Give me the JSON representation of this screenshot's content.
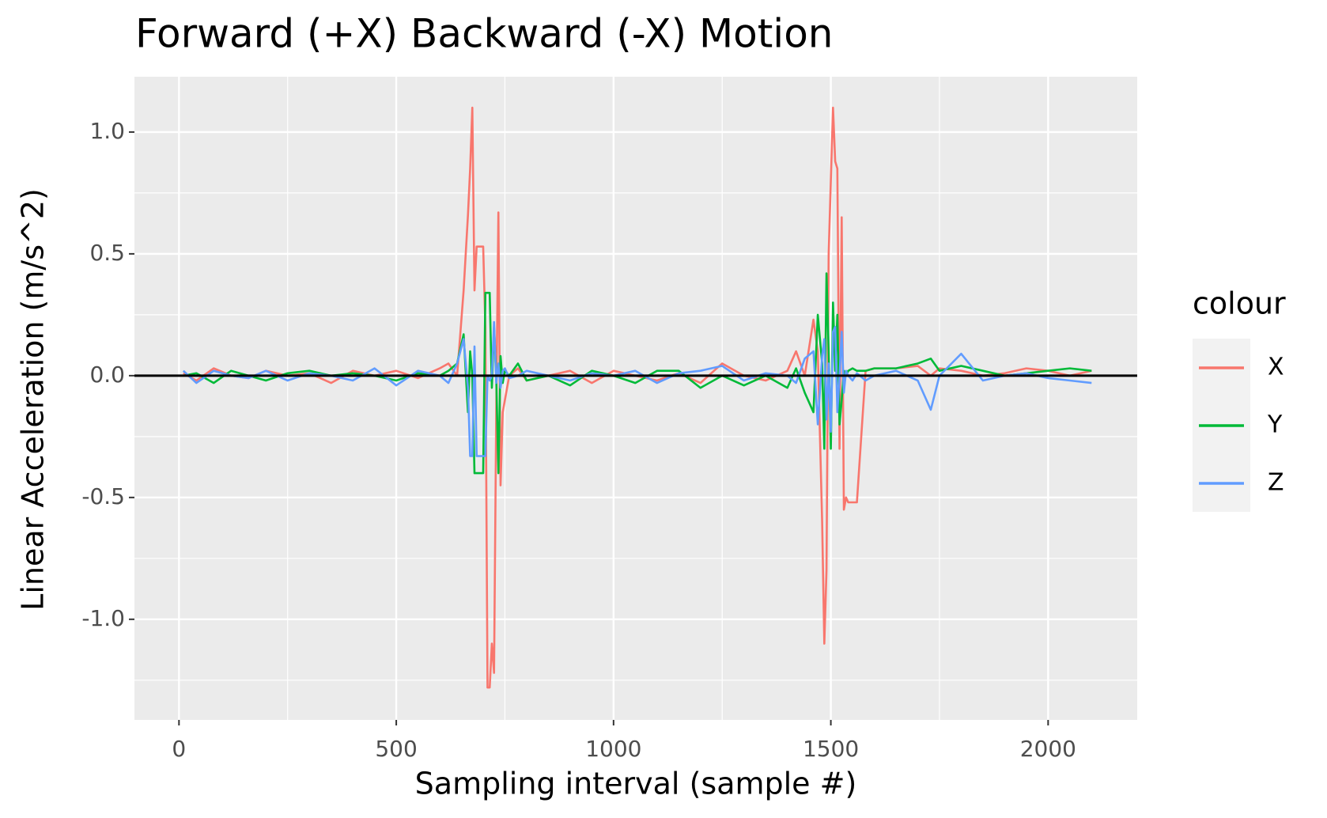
{
  "chart_data": {
    "type": "line",
    "title": "Forward (+X) Backward (-X) Motion",
    "x_label": "Sampling interval (sample #)",
    "y_label": "Linear Acceleration (m/s^2)",
    "legend_title": "colour",
    "legend_position": "right",
    "grid": true,
    "hline": 0,
    "x": [
      10,
      40,
      80,
      120,
      160,
      200,
      250,
      300,
      350,
      400,
      450,
      500,
      550,
      600,
      620,
      640,
      655,
      665,
      670,
      675,
      680,
      685,
      690,
      700,
      705,
      710,
      715,
      720,
      725,
      730,
      735,
      740,
      745,
      750,
      760,
      780,
      800,
      850,
      900,
      950,
      1000,
      1050,
      1100,
      1150,
      1200,
      1250,
      1300,
      1350,
      1400,
      1420,
      1440,
      1460,
      1470,
      1480,
      1485,
      1490,
      1495,
      1500,
      1505,
      1510,
      1515,
      1520,
      1525,
      1530,
      1535,
      1540,
      1550,
      1560,
      1580,
      1600,
      1650,
      1700,
      1730,
      1750,
      1800,
      1850,
      1900,
      1950,
      2000,
      2050,
      2100
    ],
    "series": [
      {
        "name": "X",
        "color": "#f8766d",
        "values": [
          0.01,
          -0.02,
          0.03,
          0.0,
          -0.01,
          0.02,
          0.0,
          0.01,
          -0.03,
          0.02,
          0.0,
          0.02,
          -0.01,
          0.03,
          0.05,
          0.0,
          0.35,
          0.66,
          0.85,
          1.1,
          0.35,
          0.53,
          0.53,
          0.53,
          0.2,
          -1.28,
          -1.28,
          -1.1,
          -1.22,
          -0.15,
          0.67,
          -0.45,
          -0.15,
          -0.1,
          0.0,
          0.03,
          -0.02,
          0.0,
          0.02,
          -0.03,
          0.02,
          0.0,
          -0.02,
          0.01,
          -0.03,
          0.05,
          0.0,
          -0.02,
          0.02,
          0.1,
          0.0,
          0.23,
          0.1,
          -0.6,
          -1.1,
          -0.8,
          0.5,
          0.8,
          1.1,
          0.88,
          0.85,
          -0.3,
          0.65,
          -0.55,
          -0.5,
          -0.52,
          -0.52,
          -0.52,
          0.02,
          0.03,
          0.03,
          0.04,
          0.0,
          0.03,
          0.02,
          0.0,
          0.01,
          0.03,
          0.02,
          0.0,
          0.02
        ]
      },
      {
        "name": "Y",
        "color": "#00ba38",
        "values": [
          0.0,
          0.01,
          -0.03,
          0.02,
          0.0,
          -0.02,
          0.01,
          0.02,
          0.0,
          0.01,
          0.0,
          -0.02,
          0.01,
          0.0,
          0.02,
          0.05,
          0.17,
          -0.15,
          0.1,
          0.0,
          -0.4,
          -0.4,
          -0.4,
          -0.4,
          0.34,
          0.34,
          0.34,
          -0.05,
          0.2,
          0.0,
          -0.4,
          0.08,
          -0.03,
          0.02,
          0.0,
          0.05,
          -0.02,
          0.0,
          -0.04,
          0.02,
          0.0,
          -0.03,
          0.02,
          0.02,
          -0.05,
          0.0,
          -0.04,
          0.0,
          -0.05,
          0.03,
          -0.07,
          -0.15,
          0.25,
          0.05,
          -0.3,
          0.42,
          0.1,
          -0.3,
          0.3,
          0.02,
          0.25,
          -0.2,
          -0.1,
          0.02,
          0.0,
          0.02,
          0.03,
          0.02,
          0.02,
          0.03,
          0.03,
          0.05,
          0.07,
          0.02,
          0.04,
          0.02,
          0.0,
          0.01,
          0.02,
          0.03,
          0.02
        ]
      },
      {
        "name": "Z",
        "color": "#619cff",
        "values": [
          0.02,
          -0.03,
          0.02,
          0.0,
          -0.01,
          0.02,
          -0.02,
          0.01,
          0.0,
          -0.02,
          0.03,
          -0.04,
          0.02,
          0.0,
          -0.03,
          0.05,
          0.15,
          -0.05,
          -0.33,
          -0.33,
          0.12,
          -0.33,
          -0.33,
          -0.33,
          -0.33,
          0.0,
          -0.02,
          0.0,
          0.22,
          -0.03,
          0.05,
          -0.05,
          0.02,
          0.03,
          -0.01,
          0.0,
          0.02,
          0.0,
          -0.02,
          0.01,
          0.0,
          0.02,
          -0.03,
          0.01,
          0.02,
          0.04,
          -0.02,
          0.01,
          0.0,
          -0.03,
          0.07,
          0.1,
          -0.2,
          0.08,
          0.15,
          -0.18,
          0.05,
          -0.23,
          0.18,
          0.2,
          -0.15,
          0.0,
          0.18,
          -0.07,
          0.02,
          0.0,
          -0.02,
          0.01,
          -0.02,
          0.0,
          0.02,
          -0.02,
          -0.14,
          0.0,
          0.09,
          -0.02,
          0.0,
          0.01,
          -0.01,
          -0.02,
          -0.03
        ]
      }
    ],
    "xlim": [
      -102.5,
      2205
    ],
    "ylim": [
      -1.413,
      1.227
    ],
    "xticks": [
      0,
      500,
      1000,
      1500,
      2000
    ],
    "yticks": [
      {
        "value": -1,
        "label": "-1.0"
      },
      -0.5,
      {
        "value": 0,
        "label": "0.0"
      },
      0.5,
      {
        "value": 1,
        "label": "1.0"
      }
    ],
    "x_minor_ticks": [
      250,
      750,
      1250,
      1750
    ],
    "y_minor_ticks": [
      -1.25,
      -0.75,
      -0.25,
      0.25,
      0.75
    ]
  }
}
